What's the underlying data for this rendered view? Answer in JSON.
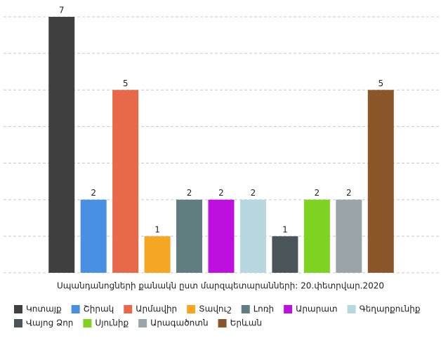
{
  "chart_data": {
    "type": "bar",
    "title": "Սպանդանոցների քանակն ըստ մարզպետարանների: 20.փետրվար.2020",
    "categories": [
      "Կոտայք",
      "Շիրակ",
      "Արմավիր",
      "Տավուշ",
      "Լոռի",
      "Արարատ",
      "Գեղարքունիք",
      "Վայոց Ձոր",
      "Սյունիք",
      "Արագածոտն",
      "Երևան"
    ],
    "values": [
      7,
      2,
      5,
      1,
      2,
      2,
      2,
      1,
      2,
      2,
      5
    ],
    "colors": [
      "#404040",
      "#4a90e2",
      "#e8694a",
      "#f5a623",
      "#607d80",
      "#bd10e0",
      "#b8d8e0",
      "#4a555a",
      "#7ed321",
      "#9aa5aa",
      "#8b572a"
    ],
    "ylim": [
      0,
      7
    ],
    "yticks": [
      0,
      1,
      2,
      3,
      4,
      5,
      6,
      7
    ],
    "grid": true
  }
}
